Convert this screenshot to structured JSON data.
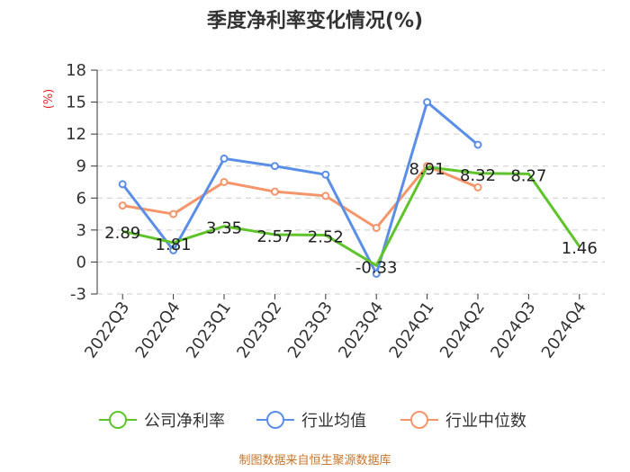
{
  "chart_data": {
    "type": "line",
    "title": "季度净利率变化情况(%)",
    "ylabel": "(%)",
    "categories": [
      "2022Q3",
      "2022Q4",
      "2023Q1",
      "2023Q2",
      "2023Q3",
      "2023Q4",
      "2024Q1",
      "2024Q2",
      "2024Q3",
      "2024Q4"
    ],
    "ylim": [
      -3,
      18
    ],
    "yticks": [
      -3,
      0,
      3,
      6,
      9,
      12,
      15,
      18
    ],
    "series": [
      {
        "name": "公司净利率",
        "color": "#5fc42b",
        "values": [
          2.89,
          1.81,
          3.35,
          2.57,
          2.52,
          -0.33,
          8.91,
          8.32,
          8.27,
          1.46
        ],
        "labels": [
          "2.89",
          "1.81",
          "3.35",
          "2.57",
          "2.52",
          "-0.33",
          "8.91",
          "8.32",
          "8.27",
          "1.46"
        ]
      },
      {
        "name": "行业均值",
        "color": "#5b8ee6",
        "values": [
          7.3,
          1.1,
          9.7,
          9.0,
          8.2,
          -1.1,
          15.0,
          11.0,
          null,
          null
        ]
      },
      {
        "name": "行业中位数",
        "color": "#f5956b",
        "values": [
          5.3,
          4.5,
          7.5,
          6.6,
          6.2,
          3.2,
          9.0,
          7.0,
          null,
          null
        ]
      }
    ],
    "grid": "horizontal-dashed",
    "legend_position": "bottom"
  },
  "source": "制图数据来自恒生聚源数据库"
}
